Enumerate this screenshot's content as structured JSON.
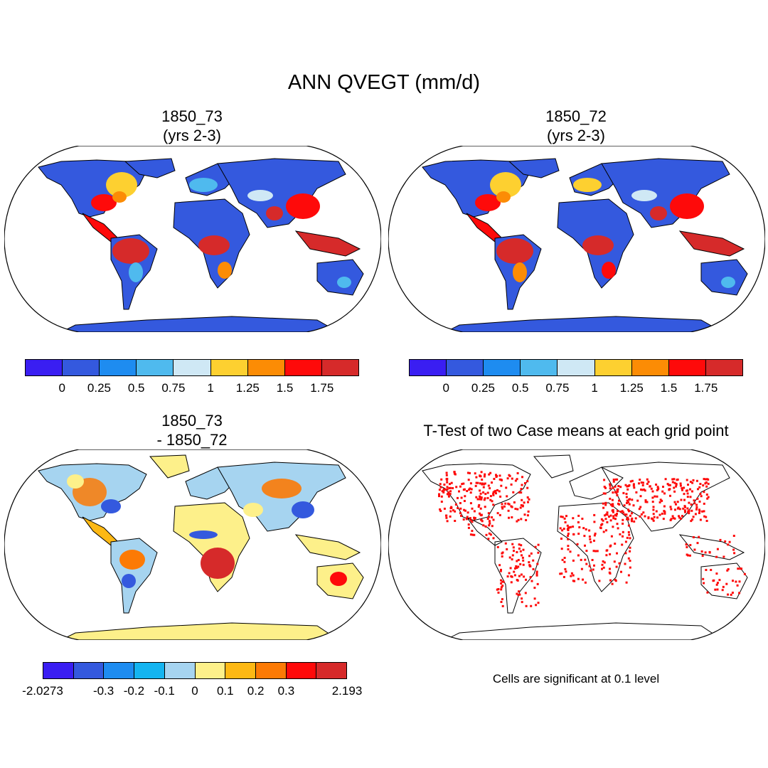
{
  "figure": {
    "title": "ANN QVEGT (mm/d)",
    "panels": [
      {
        "id": "case1",
        "title_line1": "1850_73",
        "title_line2": "(yrs 2-3)",
        "colorbar": {
          "colors": [
            "#3a1ef2",
            "#3459de",
            "#1e8cf0",
            "#4fbaee",
            "#cfe8f5",
            "#fdd030",
            "#fc8c05",
            "#fe0a0a",
            "#d62a2a"
          ],
          "tick_labels": [
            "0",
            "0.25",
            "0.5",
            "0.75",
            "1",
            "1.25",
            "1.5",
            "1.75"
          ]
        }
      },
      {
        "id": "case2",
        "title_line1": "1850_72",
        "title_line2": "(yrs 2-3)",
        "colorbar": {
          "colors": [
            "#3a1ef2",
            "#3459de",
            "#1e8cf0",
            "#4fbaee",
            "#cfe8f5",
            "#fdd030",
            "#fc8c05",
            "#fe0a0a",
            "#d62a2a"
          ],
          "tick_labels": [
            "0",
            "0.25",
            "0.5",
            "0.75",
            "1",
            "1.25",
            "1.5",
            "1.75"
          ]
        }
      },
      {
        "id": "difference",
        "title_line1": "1850_73",
        "title_line2": "- 1850_72",
        "colorbar": {
          "colors": [
            "#3a1ef2",
            "#3459de",
            "#1e8cf0",
            "#14b4f0",
            "#a6d4f0",
            "#fdf08a",
            "#fdb814",
            "#fc7a05",
            "#fe0a0a",
            "#d62a2a"
          ],
          "tick_labels": [
            "-2.0273",
            "-0.3",
            "-0.2",
            "-0.1",
            "0",
            "0.1",
            "0.2",
            "0.3",
            "2.193"
          ]
        }
      },
      {
        "id": "ttest",
        "title_line1": "T-Test of two Case means at each grid point",
        "note": "Cells are significant at 0.1 level"
      }
    ]
  }
}
